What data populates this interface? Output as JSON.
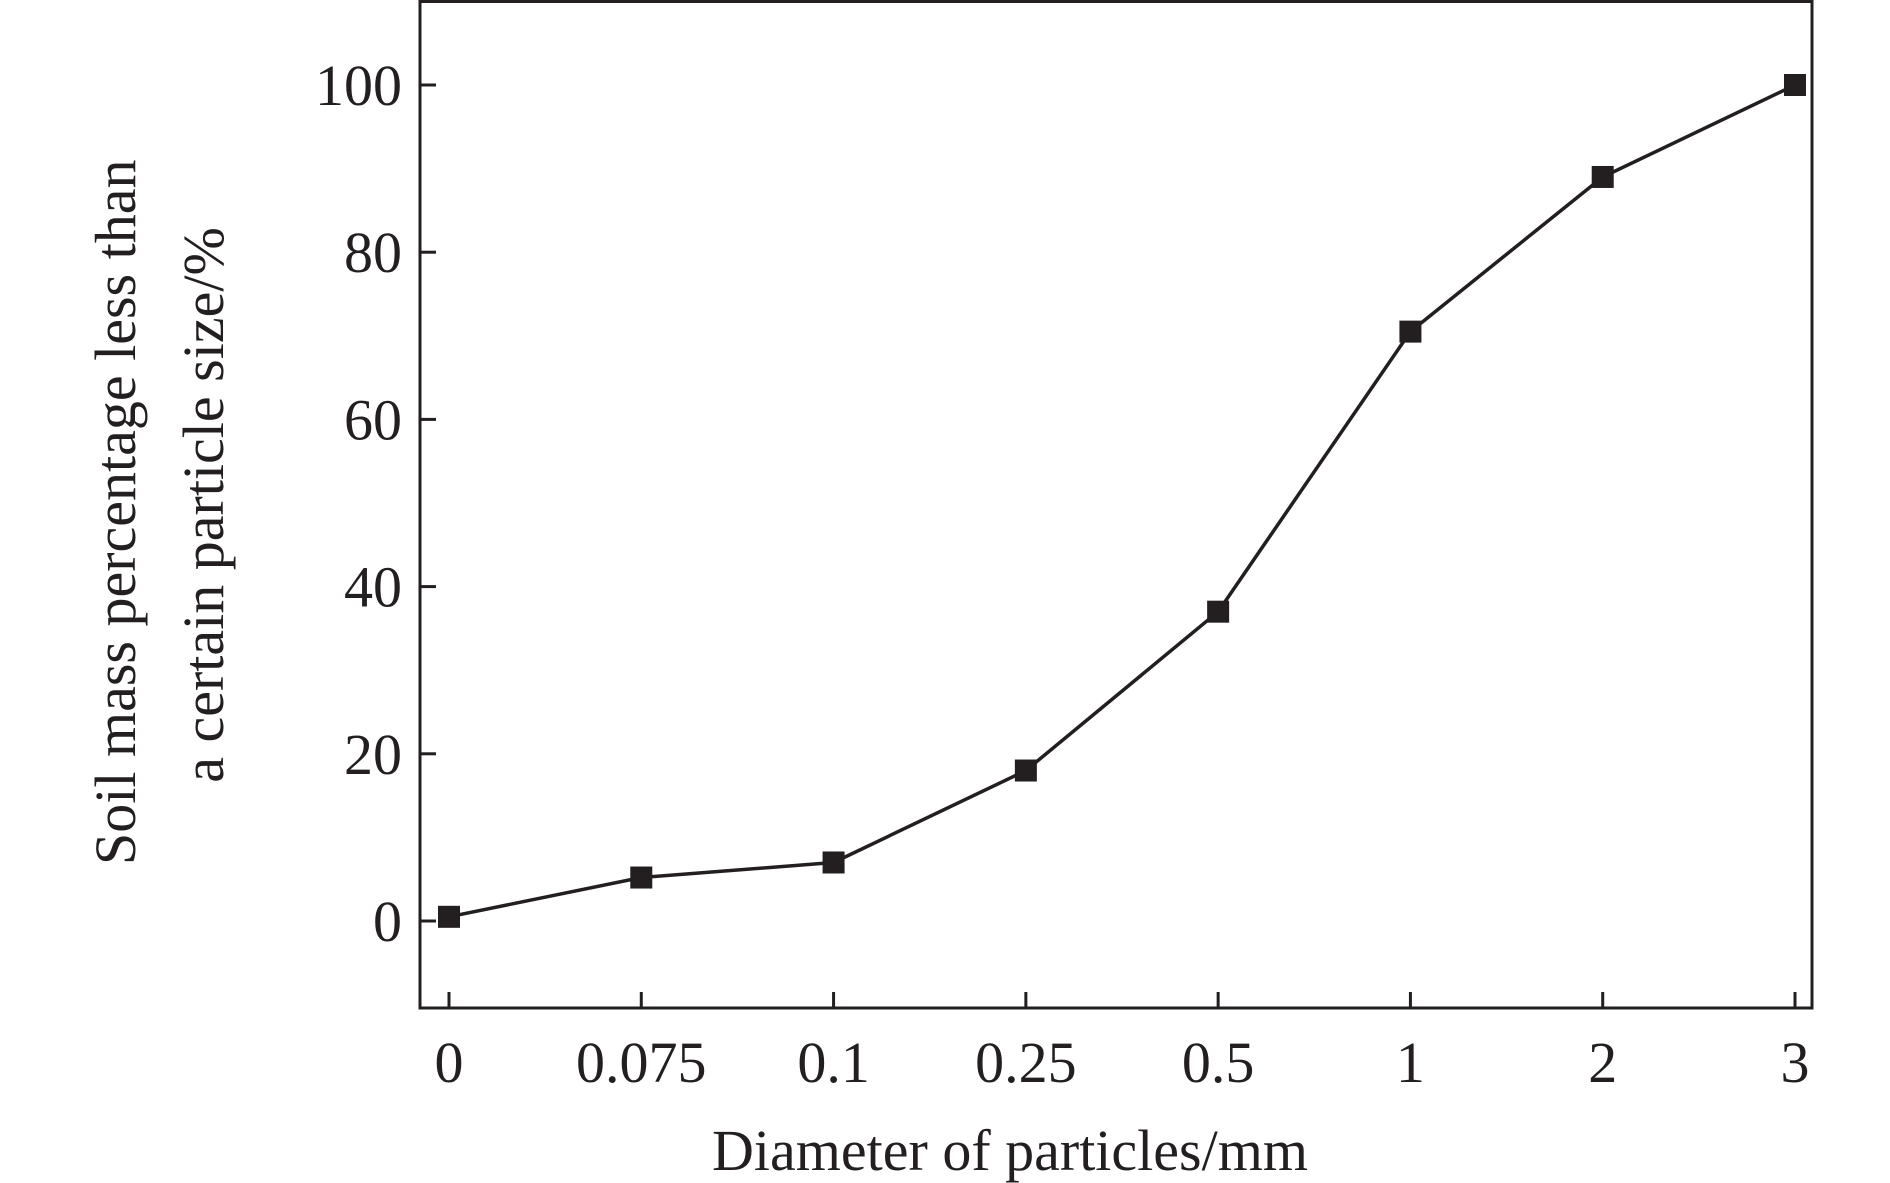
{
  "chart_data": {
    "type": "line",
    "title": "",
    "xlabel": "Diameter of particles/mm",
    "ylabel_lines": [
      "Soil mass percentage less than",
      "a certain particle size/%"
    ],
    "x_scale": "categorical",
    "categories": [
      "0",
      "0.075",
      "0.1",
      "0.25",
      "0.5",
      "1",
      "2",
      "3"
    ],
    "series": [
      {
        "values": [
          0.5,
          5.2,
          7,
          18,
          37,
          70.5,
          89,
          100
        ]
      }
    ],
    "ylim": [
      -10,
      110
    ],
    "yticks": [
      0,
      20,
      40,
      60,
      80,
      100
    ],
    "grid": false,
    "legend": "none",
    "marker": "square",
    "colors": {
      "line": "#231f20",
      "axis": "#231f20",
      "text": "#231f20",
      "background": "#ffffff"
    }
  }
}
